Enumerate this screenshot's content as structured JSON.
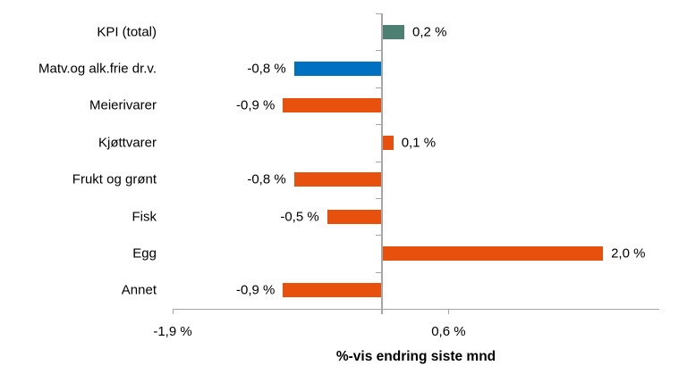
{
  "chart_data": {
    "type": "bar",
    "orientation": "horizontal",
    "categories": [
      "KPI (total)",
      "Matv.og alk.frie dr.v.",
      "Meierivarer",
      "Kjøttvarer",
      "Frukt og grønt",
      "Fisk",
      "Egg",
      "Annet"
    ],
    "values": [
      0.2,
      -0.8,
      -0.9,
      0.1,
      -0.8,
      -0.5,
      2.0,
      -0.9
    ],
    "value_labels": [
      "0,2 %",
      "-0,8 %",
      "-0,9 %",
      "0,1 %",
      "-0,8 %",
      "-0,5 %",
      "2,0 %",
      "-0,9 %"
    ],
    "bar_colors": [
      "#4E7F73",
      "#0070C0",
      "#E8500E",
      "#E8500E",
      "#E8500E",
      "#E8500E",
      "#E8500E",
      "#E8500E"
    ],
    "title": "",
    "xlabel": "%-vis endring siste mnd",
    "ylabel": "",
    "xlim": [
      -1.9,
      2.51
    ],
    "x_ticks": [
      {
        "value": -1.9,
        "label": "-1,9 %"
      },
      {
        "value": 0.6,
        "label": "0,6 %"
      }
    ],
    "axis_color": "#A6A6A6",
    "grid": false,
    "legend": false,
    "data_labels": true
  }
}
